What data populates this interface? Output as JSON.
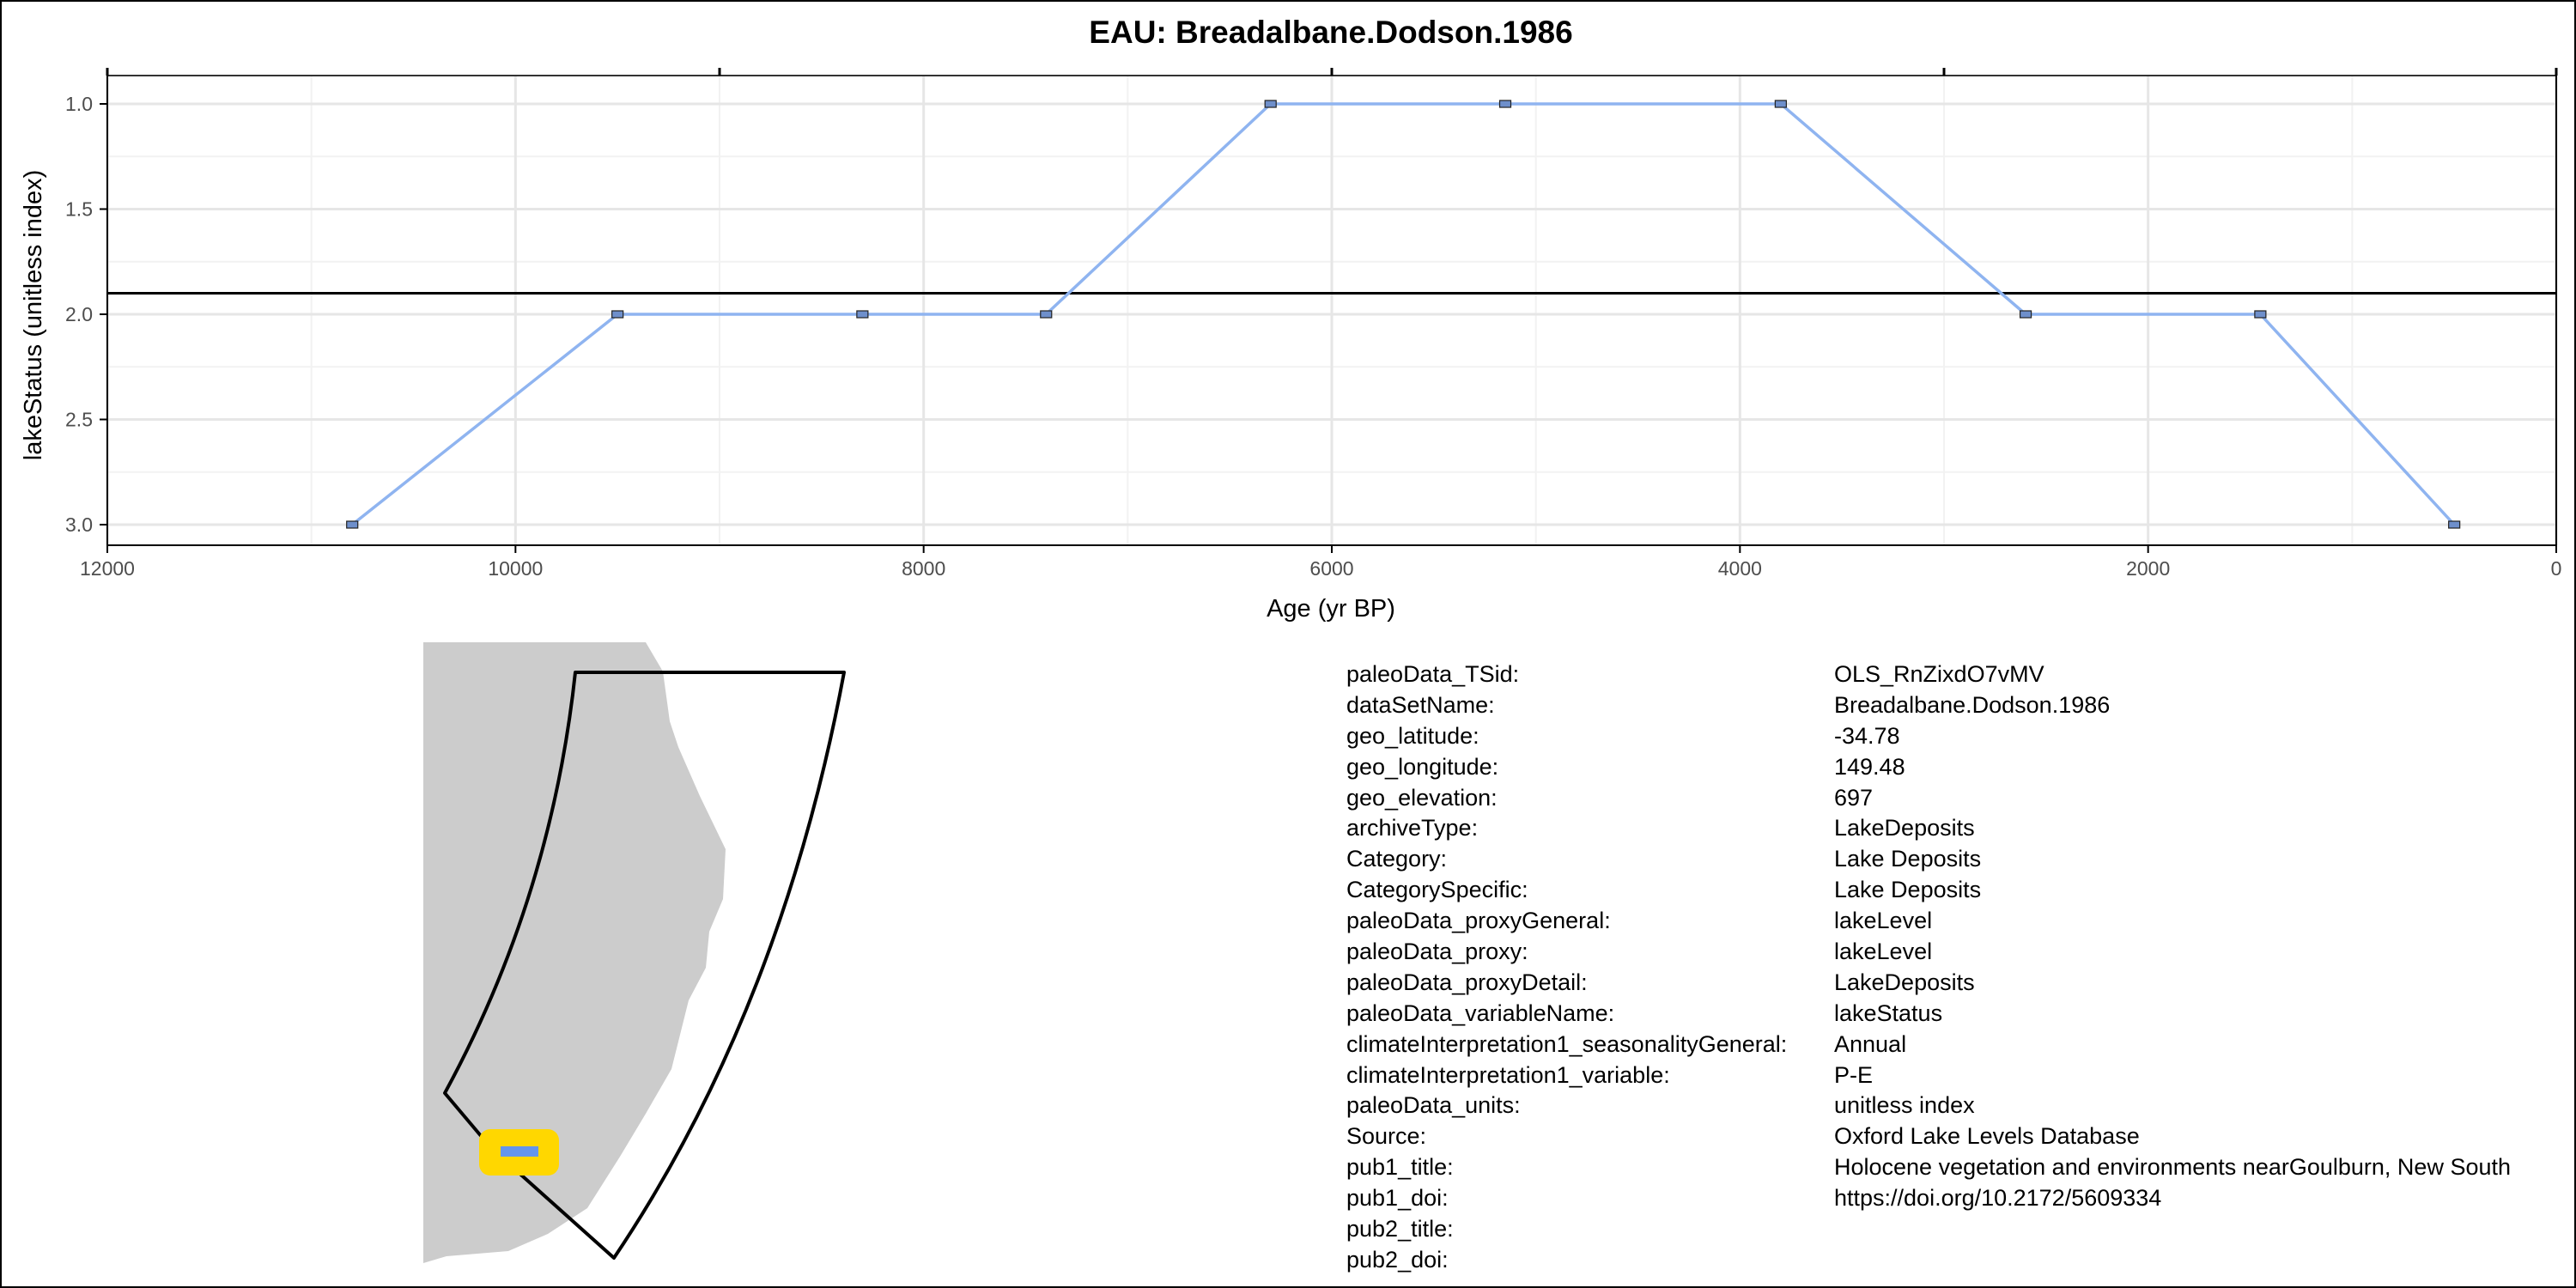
{
  "chart_data": {
    "type": "line",
    "title": "EAU: Breadalbane.Dodson.1986",
    "xlabel": "Age (yr BP)",
    "ylabel": "lakeStatus (unitless index)",
    "x_reversed": true,
    "y_reversed": true,
    "xlim": [
      12000,
      0
    ],
    "ylim": [
      3.0,
      1.0
    ],
    "x_ticks": [
      12000,
      10000,
      8000,
      6000,
      4000,
      2000,
      0
    ],
    "x_tick_labels": [
      "12000",
      "10000",
      "8000",
      "6000",
      "4000",
      "2000",
      "0"
    ],
    "y_ticks": [
      1.0,
      1.5,
      2.0,
      2.5,
      3.0
    ],
    "y_tick_labels": [
      "1.0",
      "1.5",
      "2.0",
      "2.5",
      "3.0"
    ],
    "grid": true,
    "line_color": "#8FB4F0",
    "marker_color": "#6E8FCB",
    "reference_line_y": 1.9,
    "series": [
      {
        "x": [
          10800,
          9500,
          8300,
          7400,
          6300,
          5150,
          3800,
          2600,
          1450,
          500
        ],
        "y": [
          3,
          2,
          2,
          2,
          1,
          1,
          1,
          2,
          2,
          3
        ]
      }
    ]
  },
  "map": {
    "land_color": "#CCCCCC",
    "marker_fill": "#FFD700",
    "marker_center": "#6495ED"
  },
  "metadata": [
    {
      "key": "paleoData_TSid:",
      "value": "OLS_RnZixdO7vMV"
    },
    {
      "key": "dataSetName:",
      "value": "Breadalbane.Dodson.1986"
    },
    {
      "key": "geo_latitude:",
      "value": "-34.78"
    },
    {
      "key": "geo_longitude:",
      "value": "149.48"
    },
    {
      "key": "geo_elevation:",
      "value": "697"
    },
    {
      "key": "archiveType:",
      "value": "LakeDeposits"
    },
    {
      "key": "Category:",
      "value": "Lake Deposits"
    },
    {
      "key": "CategorySpecific:",
      "value": "Lake Deposits"
    },
    {
      "key": "paleoData_proxyGeneral:",
      "value": "lakeLevel"
    },
    {
      "key": "paleoData_proxy:",
      "value": "lakeLevel"
    },
    {
      "key": "paleoData_proxyDetail:",
      "value": "LakeDeposits"
    },
    {
      "key": "paleoData_variableName:",
      "value": "lakeStatus"
    },
    {
      "key": "climateInterpretation1_seasonalityGeneral:",
      "value": "Annual"
    },
    {
      "key": "climateInterpretation1_variable:",
      "value": "P-E"
    },
    {
      "key": "paleoData_units:",
      "value": "unitless index"
    },
    {
      "key": "Source:",
      "value": "Oxford Lake Levels Database"
    },
    {
      "key": "pub1_title:",
      "value": "Holocene vegetation and environments nearGoulburn, New South"
    },
    {
      "key": "pub1_doi:",
      "value": "https://doi.org/10.2172/5609334"
    },
    {
      "key": "pub2_title:",
      "value": ""
    },
    {
      "key": "pub2_doi:",
      "value": ""
    }
  ]
}
